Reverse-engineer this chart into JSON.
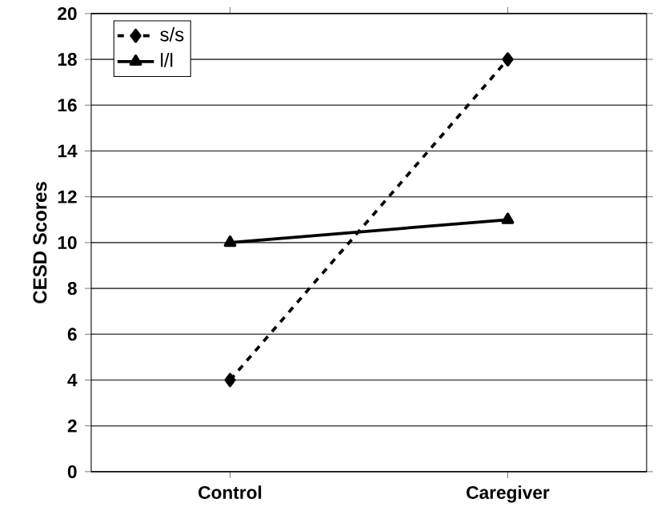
{
  "chart_data": {
    "type": "line",
    "ylabel": "CESD Scores",
    "categories": [
      "Control",
      "Caregiver"
    ],
    "series": [
      {
        "name": "s/s",
        "color": "#000000",
        "values": [
          4,
          18
        ],
        "marker": "diamond",
        "line_style": "dashed"
      },
      {
        "name": "l/l",
        "color": "#000000",
        "values": [
          10,
          11
        ],
        "marker": "triangle",
        "line_style": "solid"
      }
    ],
    "ylim": [
      0,
      20
    ],
    "yticks": [
      0,
      2,
      4,
      6,
      8,
      10,
      12,
      14,
      16,
      18,
      20
    ],
    "grid": "y",
    "legend": "top left"
  }
}
